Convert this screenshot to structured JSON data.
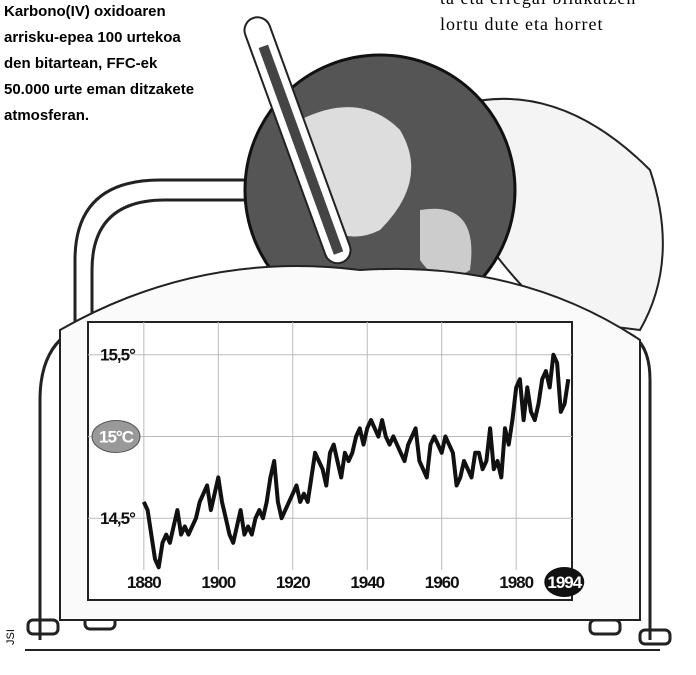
{
  "caption": [
    "Karbono(IV) oxidoaren",
    "arrisku-epea 100 urtekoa",
    "den bitartean, FFC-ek",
    "50.000 urte eman ditzakete",
    "atmosferan."
  ],
  "article": [
    "ta eta erregai bilakatzen",
    "lortu dute eta horret"
  ],
  "credit": "JSI",
  "chart_data": {
    "type": "line",
    "x": [
      1880,
      1881,
      1882,
      1883,
      1884,
      1885,
      1886,
      1887,
      1888,
      1889,
      1890,
      1891,
      1892,
      1893,
      1894,
      1895,
      1896,
      1897,
      1898,
      1899,
      1900,
      1901,
      1902,
      1903,
      1904,
      1905,
      1906,
      1907,
      1908,
      1909,
      1910,
      1911,
      1912,
      1913,
      1914,
      1915,
      1916,
      1917,
      1918,
      1919,
      1920,
      1921,
      1922,
      1923,
      1924,
      1925,
      1926,
      1927,
      1928,
      1929,
      1930,
      1931,
      1932,
      1933,
      1934,
      1935,
      1936,
      1937,
      1938,
      1939,
      1940,
      1941,
      1942,
      1943,
      1944,
      1945,
      1946,
      1947,
      1948,
      1949,
      1950,
      1951,
      1952,
      1953,
      1954,
      1955,
      1956,
      1957,
      1958,
      1959,
      1960,
      1961,
      1962,
      1963,
      1964,
      1965,
      1966,
      1967,
      1968,
      1969,
      1970,
      1971,
      1972,
      1973,
      1974,
      1975,
      1976,
      1977,
      1978,
      1979,
      1980,
      1981,
      1982,
      1983,
      1984,
      1985,
      1986,
      1987,
      1988,
      1989,
      1990,
      1991,
      1992,
      1993,
      1994
    ],
    "values": [
      14.6,
      14.55,
      14.4,
      14.25,
      14.2,
      14.35,
      14.4,
      14.35,
      14.45,
      14.55,
      14.4,
      14.45,
      14.4,
      14.45,
      14.5,
      14.6,
      14.65,
      14.7,
      14.55,
      14.65,
      14.75,
      14.6,
      14.5,
      14.4,
      14.35,
      14.45,
      14.55,
      14.4,
      14.45,
      14.4,
      14.5,
      14.55,
      14.5,
      14.6,
      14.75,
      14.85,
      14.6,
      14.5,
      14.55,
      14.6,
      14.65,
      14.7,
      14.6,
      14.65,
      14.6,
      14.75,
      14.9,
      14.85,
      14.8,
      14.7,
      14.9,
      14.95,
      14.85,
      14.75,
      14.9,
      14.85,
      14.9,
      15.0,
      15.05,
      14.95,
      15.05,
      15.1,
      15.05,
      15.0,
      15.1,
      15.0,
      14.95,
      15.0,
      14.95,
      14.9,
      14.85,
      14.95,
      15.0,
      15.05,
      14.85,
      14.8,
      14.75,
      14.95,
      15.0,
      14.95,
      14.9,
      15.0,
      14.95,
      14.9,
      14.7,
      14.75,
      14.85,
      14.8,
      14.75,
      14.9,
      14.9,
      14.8,
      14.85,
      15.05,
      14.8,
      14.85,
      14.75,
      15.05,
      14.95,
      15.1,
      15.3,
      15.35,
      15.1,
      15.3,
      15.15,
      15.1,
      15.2,
      15.35,
      15.4,
      15.3,
      15.5,
      15.45,
      15.15,
      15.2,
      15.35
    ],
    "color": "#111111",
    "xlim": [
      1865,
      1995
    ],
    "ylim": [
      14.0,
      15.7
    ],
    "xticks": [
      1880,
      1900,
      1920,
      1940,
      1960,
      1980,
      1994
    ],
    "yticks": [
      {
        "value": 14.5,
        "label": "14,5°"
      },
      {
        "value": 15,
        "label": "15°C"
      },
      {
        "value": 15.5,
        "label": "15,5°"
      }
    ],
    "grid": true
  }
}
